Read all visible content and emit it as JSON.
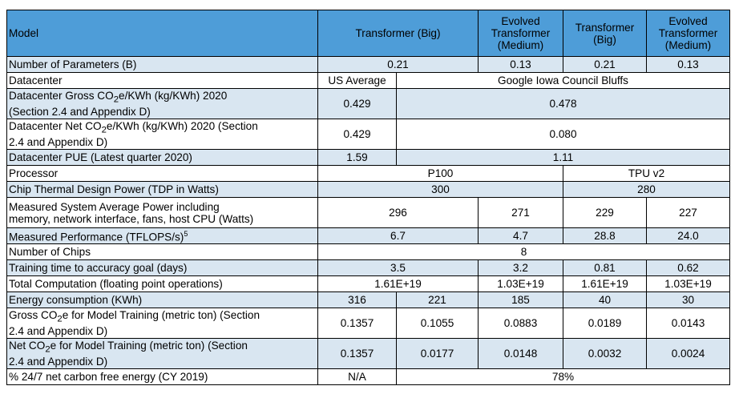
{
  "header": {
    "model": "Model",
    "col1": "Transformer (Big)",
    "col2": [
      "Evolved",
      "Transformer",
      "(Medium)"
    ],
    "col3": [
      "Transformer",
      "(Big)"
    ],
    "col4": [
      "Evolved",
      "Transformer",
      "(Medium)"
    ]
  },
  "rows": {
    "params": {
      "label": "Number of Parameters (B)",
      "v1": "0.21",
      "v2": "0.13",
      "v3": "0.21",
      "v4": "0.13"
    },
    "datacenter": {
      "label": "Datacenter",
      "v1": "US Average",
      "v2": "Google Iowa Council Bluffs"
    },
    "gross_co2": {
      "label_a": "Datacenter Gross CO",
      "label_b": "e/KWh (kg/KWh) 2020",
      "label_c": "(Section 2.4 and Appendix D)",
      "v1": "0.429",
      "v2": "0.478"
    },
    "net_co2": {
      "label_a": "Datacenter Net CO",
      "label_b": "e/KWh (kg/KWh) 2020 (Section",
      "label_c": "2.4 and Appendix D)",
      "v1": "0.429",
      "v2": "0.080"
    },
    "pue": {
      "label": "Datacenter PUE (Latest quarter 2020)",
      "v1": "1.59",
      "v2": "1.11"
    },
    "processor": {
      "label": "Processor",
      "v1": "P100",
      "v2": "TPU v2"
    },
    "tdp": {
      "label": "Chip Thermal Design Power (TDP in Watts)",
      "v1": "300",
      "v2": "280"
    },
    "power": {
      "label_a": "Measured System Average Power including",
      "label_b": "memory, network interface, fans, host CPU (Watts)",
      "v1": "296",
      "v2": "271",
      "v3": "229",
      "v4": "227"
    },
    "perf": {
      "label": "Measured Performance (TFLOPS/s)",
      "sup": "5",
      "v1": "6.7",
      "v2": "4.7",
      "v3": "28.8",
      "v4": "24.0"
    },
    "chips": {
      "label": "Number of Chips",
      "v1": "8"
    },
    "time": {
      "label": "Training time to accuracy goal (days)",
      "v1": "3.5",
      "v2": "3.2",
      "v3": "0.81",
      "v4": "0.62"
    },
    "compute": {
      "label": "Total Computation (floating point operations)",
      "v1": "1.61E+19",
      "v2": "1.03E+19",
      "v3": "1.61E+19",
      "v4": "1.03E+19"
    },
    "energy": {
      "label": "Energy consumption (KWh)",
      "v1": "316",
      "v2": "221",
      "v3": "185",
      "v4": "40",
      "v5": "30"
    },
    "gross_train": {
      "label_a": "Gross CO",
      "label_b": "e for Model Training (metric ton) (Section",
      "label_c": "2.4 and Appendix D)",
      "v1": "0.1357",
      "v2": "0.1055",
      "v3": "0.0883",
      "v4": "0.0189",
      "v5": "0.0143"
    },
    "net_train": {
      "label_a": "Net CO",
      "label_b": "e for Model Training (metric ton) (Section",
      "label_c": "2.4 and Appendix D)",
      "v1": "0.1357",
      "v2": "0.0177",
      "v3": "0.0148",
      "v4": "0.0032",
      "v5": "0.0024"
    },
    "cfe": {
      "label": "% 24/7 net carbon free energy (CY 2019)",
      "v1": "N/A",
      "v2": "78%"
    }
  },
  "subscript": "2",
  "colors": {
    "header": "#4e9dd8",
    "band": "#d9e6f1",
    "white": "#ffffff"
  }
}
